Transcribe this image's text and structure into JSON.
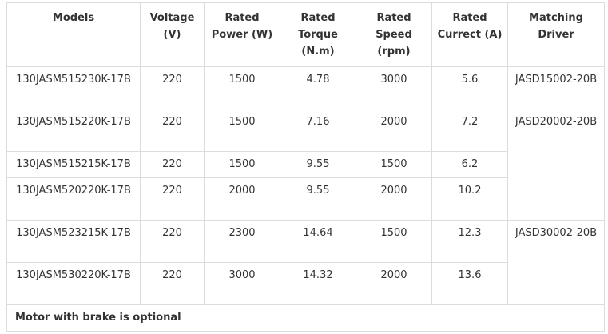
{
  "table": {
    "headers": [
      "Models",
      "Voltage (V)",
      "Rated Power (W)",
      "Rated Torque (N.m)",
      "Rated Speed (rpm)",
      "Rated Currect (A)",
      "Matching Driver"
    ],
    "rows": [
      [
        "130JASM515230K-17B",
        "220",
        "1500",
        "4.78",
        "3000",
        "5.6",
        "JASD15002-20B"
      ],
      [
        "130JASM515220K-17B",
        "220",
        "1500",
        "7.16",
        "2000",
        "7.2",
        "JASD20002-20B"
      ],
      [
        "130JASM515215K-17B",
        "220",
        "1500",
        "9.55",
        "1500",
        "6.2"
      ],
      [
        "130JASM520220K-17B",
        "220",
        "2000",
        "9.55",
        "2000",
        "10.2"
      ],
      [
        "130JASM523215K-17B",
        "220",
        "2300",
        "14.64",
        "1500",
        "12.3",
        "JASD30002-20B"
      ],
      [
        "130JASM530220K-17B",
        "220",
        "3000",
        "14.32",
        "2000",
        "13.6"
      ]
    ],
    "footer": "Motor with brake is optional"
  }
}
